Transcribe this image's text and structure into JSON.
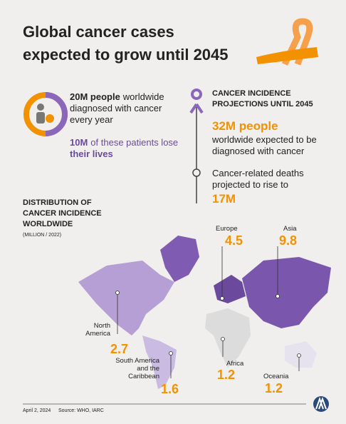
{
  "header": {
    "title_lines": [
      "Global cancer cases",
      "expected to grow until 2045"
    ]
  },
  "summary": {
    "cases": {
      "bold": "20M people",
      "text": "worldwide",
      "lines": [
        "diagnosed with cancer",
        "every year"
      ]
    },
    "deaths": {
      "bold": "10M",
      "text": "of these patients lose",
      "last": "their lives"
    }
  },
  "projections": {
    "heading_lines": [
      "CANCER INCIDENCE",
      "PROJECTIONS UNTIL 2045"
    ],
    "cases": {
      "value": "32M people",
      "lines": [
        "worldwide expected to be",
        "diagnosed with cancer"
      ]
    },
    "deaths": {
      "lines": [
        "Cancer-related deaths",
        "projected to rise to"
      ],
      "value": "17M"
    }
  },
  "distribution": {
    "heading_lines": [
      "DISTRIBUTION OF",
      "CANCER INCIDENCE",
      "WORLDWIDE"
    ],
    "unit": "(MILLION / 2022)",
    "regions": [
      {
        "label_lines": [
          "Europe"
        ],
        "value": 4.5
      },
      {
        "label_lines": [
          "Asia"
        ],
        "value": 9.8
      },
      {
        "label_lines": [
          "North",
          "America"
        ],
        "value": 2.7
      },
      {
        "label_lines": [
          "South America",
          "and the",
          "Caribbean"
        ],
        "value": 1.6
      },
      {
        "label_lines": [
          "Africa"
        ],
        "value": 1.2
      },
      {
        "label_lines": [
          "Oceania"
        ],
        "value": 1.2
      }
    ]
  },
  "footer": {
    "date": "April 2, 2024",
    "source": "Source: WHO, IARC"
  }
}
